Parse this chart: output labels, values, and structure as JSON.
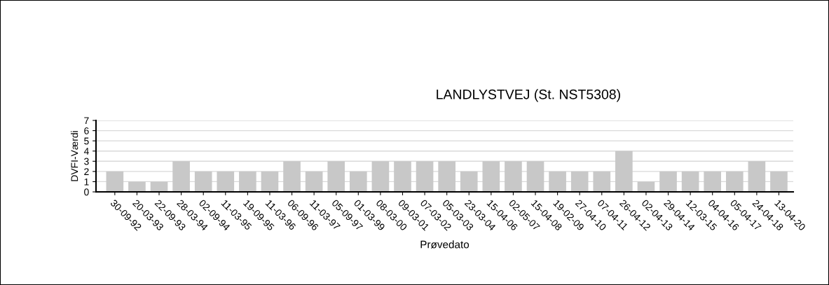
{
  "chart_data": {
    "type": "bar",
    "title": "LANDLYSTVEJ (St. NST5308)",
    "xlabel": "Prøvedato",
    "ylabel": "DVFI-Værdi",
    "categories": [
      "30-09-92",
      "20-03-93",
      "22-09-93",
      "28-03-94",
      "02-09-94",
      "11-03-95",
      "19-09-95",
      "11-03-96",
      "06-09-96",
      "11-03-97",
      "05-09-97",
      "01-03-99",
      "08-03-00",
      "09-03-01",
      "07-03-02",
      "05-03-03",
      "23-03-04",
      "15-04-06",
      "02-05-07",
      "15-04-08",
      "19-02-09",
      "27-04-10",
      "07-04-11",
      "26-04-12",
      "02-04-13",
      "29-04-14",
      "12-03-15",
      "04-04-16",
      "05-04-17",
      "24-04-18",
      "13-04-20"
    ],
    "values": [
      2,
      1,
      1,
      3,
      2,
      2,
      2,
      2,
      3,
      2,
      3,
      2,
      3,
      3,
      3,
      3,
      2,
      3,
      3,
      3,
      2,
      2,
      2,
      4,
      1,
      2,
      2,
      2,
      2,
      3,
      2
    ],
    "color": "#c8c8c8",
    "ylim": [
      0,
      7
    ],
    "yticks": [
      0,
      1,
      2,
      3,
      4,
      5,
      6,
      7
    ],
    "grid": "y",
    "legend": false
  }
}
